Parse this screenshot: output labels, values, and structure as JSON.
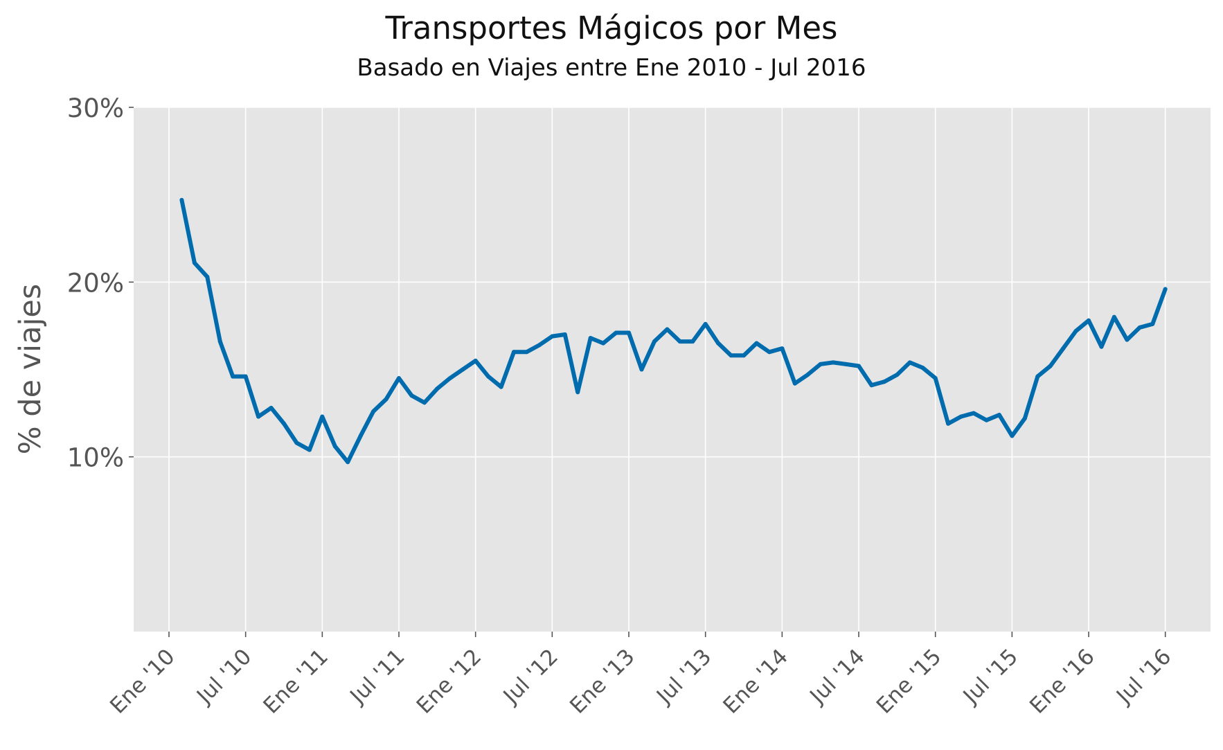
{
  "chart_data": {
    "type": "line",
    "title": "Transportes Mágicos por Mes",
    "subtitle": "Basado en Viajes entre Ene 2010 - Jul 2016",
    "ylabel": "% de viajes",
    "xlabel": "",
    "ylim": [
      0,
      30
    ],
    "y_ticks": [
      {
        "value": 10,
        "label": "10%"
      },
      {
        "value": 20,
        "label": "20%"
      },
      {
        "value": 30,
        "label": "30%"
      }
    ],
    "x_ticks": [
      {
        "month": 0,
        "label": "Ene '10"
      },
      {
        "month": 6,
        "label": "Jul '10"
      },
      {
        "month": 12,
        "label": "Ene '11"
      },
      {
        "month": 18,
        "label": "Jul '11"
      },
      {
        "month": 24,
        "label": "Ene '12"
      },
      {
        "month": 30,
        "label": "Jul '12"
      },
      {
        "month": 36,
        "label": "Ene '13"
      },
      {
        "month": 42,
        "label": "Jul '13"
      },
      {
        "month": 48,
        "label": "Ene '14"
      },
      {
        "month": 54,
        "label": "Jul '14"
      },
      {
        "month": 60,
        "label": "Ene '15"
      },
      {
        "month": 66,
        "label": "Jul '15"
      },
      {
        "month": 72,
        "label": "Ene '16"
      },
      {
        "month": 78,
        "label": "Jul '16"
      }
    ],
    "grid": true,
    "colors": {
      "line": "#006bad",
      "background": "#e5e5e5",
      "grid": "#ffffff"
    },
    "series": [
      {
        "values": [
          24.7,
          21.1,
          20.3,
          16.6,
          14.6,
          14.6,
          12.3,
          12.8,
          11.9,
          10.8,
          10.4,
          12.3,
          10.6,
          9.7,
          11.2,
          12.6,
          13.3,
          14.5,
          13.5,
          13.1,
          13.9,
          14.5,
          15.0,
          15.5,
          14.6,
          14.0,
          16.0,
          16.0,
          16.4,
          16.9,
          17.0,
          13.7,
          16.8,
          16.5,
          17.1,
          17.1,
          15.0,
          16.6,
          17.3,
          16.6,
          16.6,
          17.6,
          16.5,
          15.8,
          15.8,
          16.5,
          16.0,
          16.2,
          14.2,
          14.7,
          15.3,
          15.4,
          15.3,
          15.2,
          14.1,
          14.3,
          14.7,
          15.4,
          15.1,
          14.5,
          11.9,
          12.3,
          12.5,
          12.1,
          12.4,
          11.2,
          12.2,
          14.6,
          15.2,
          16.2,
          17.2,
          17.8,
          16.3,
          18.0,
          16.7,
          17.4,
          17.6,
          19.6
        ]
      }
    ]
  }
}
